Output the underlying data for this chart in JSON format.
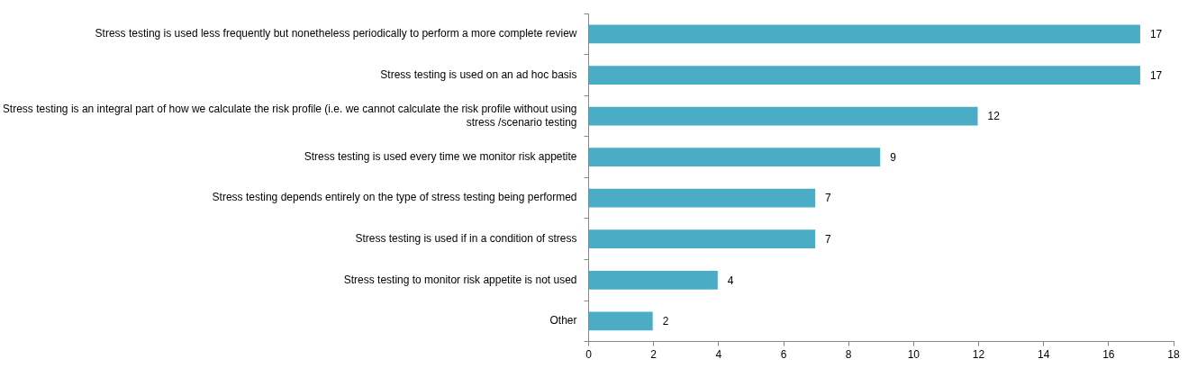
{
  "chart_data": {
    "type": "bar",
    "orientation": "horizontal",
    "categories": [
      "Stress testing is used less frequently but nonetheless periodically to perform a more complete review",
      "Stress testing is used on an ad hoc basis",
      "Stress testing is an integral part of how we calculate the risk profile (i.e. we cannot calculate the risk profile without using stress /scenario testing",
      "Stress testing is used every time we monitor risk appetite",
      "Stress testing depends entirely on the type of stress testing being performed",
      "Stress testing is used if in a condition of stress",
      "Stress testing to monitor risk appetite is not used",
      "Other"
    ],
    "values": [
      17,
      17,
      12,
      9,
      7,
      7,
      4,
      2
    ],
    "color": "#4bacc6",
    "xlim": [
      0,
      18
    ],
    "xticks": [
      0,
      2,
      4,
      6,
      8,
      10,
      12,
      14,
      16,
      18
    ],
    "data_labels": true,
    "grid": false,
    "legend": false
  }
}
